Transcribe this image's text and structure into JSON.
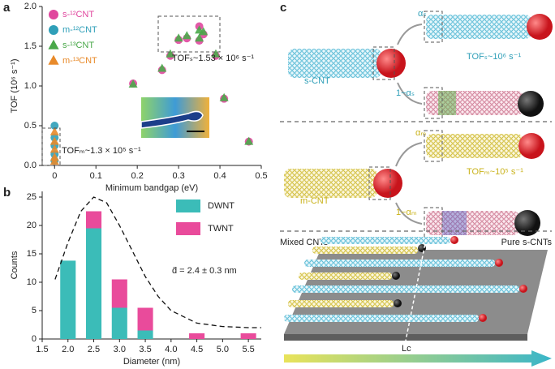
{
  "chart_data": [
    {
      "type": "scatter",
      "panel": "a",
      "x_label": "Minimum bandgap (eV)",
      "y_label": "TOF (10⁶ s⁻¹)",
      "xlim": [
        -0.03,
        0.5
      ],
      "xticks": [
        0,
        0.1,
        0.2,
        0.3,
        0.4,
        0.5
      ],
      "ylim": [
        0,
        2.0
      ],
      "yticks": [
        {
          "value": 0,
          "label": "0.0"
        },
        {
          "value": 0.5,
          "label": "0.5"
        },
        {
          "value": 1.0,
          "label": "1.0"
        },
        {
          "value": 1.5,
          "label": "1.5"
        },
        {
          "value": 2.0,
          "label": "2.0"
        }
      ],
      "annotations": [
        "TOFₛ~1.53 × 10⁶ s⁻¹",
        "TOFₘ~1.3 × 10⁵ s⁻¹"
      ],
      "series": [
        {
          "name": "s-¹²CNT",
          "color": "#e0479e",
          "marker": "circle",
          "x": [
            0.19,
            0.26,
            0.28,
            0.3,
            0.32,
            0.35,
            0.35,
            0.36,
            0.39,
            0.41,
            0.47
          ],
          "values": [
            1.03,
            1.2,
            1.38,
            1.58,
            1.6,
            1.75,
            1.57,
            1.65,
            1.38,
            0.84,
            0.3
          ]
        },
        {
          "name": "m-¹²CNT",
          "color": "#2f9fb8",
          "marker": "circle",
          "x": [
            0,
            0,
            0,
            0,
            0
          ],
          "values": [
            0.5,
            0.35,
            0.25,
            0.14,
            0.06
          ]
        },
        {
          "name": "s-¹³CNT",
          "color": "#4aa84a",
          "marker": "triangle",
          "x": [
            0.19,
            0.26,
            0.28,
            0.3,
            0.32,
            0.35,
            0.35,
            0.36,
            0.39,
            0.41,
            0.47
          ],
          "values": [
            1.02,
            1.22,
            1.4,
            1.6,
            1.63,
            1.7,
            1.6,
            1.68,
            1.4,
            0.85,
            0.3
          ]
        },
        {
          "name": "m-¹³CNT",
          "color": "#e88a2a",
          "marker": "triangle",
          "x": [
            0,
            0,
            0,
            0,
            0
          ],
          "values": [
            0.42,
            0.3,
            0.2,
            0.1,
            0.05
          ]
        }
      ]
    },
    {
      "type": "bar",
      "panel": "b",
      "x_label": "Diameter (nm)",
      "y_label": "Counts",
      "xlim": [
        1.5,
        5.75
      ],
      "xticks": [
        1.5,
        {
          "value": 2.0,
          "label": "2.0"
        },
        2.5,
        {
          "value": 3.0,
          "label": "3.0"
        },
        3.5,
        {
          "value": 4.0,
          "label": "4.0"
        },
        4.5,
        {
          "value": 5.0,
          "label": "5.0"
        },
        5.5
      ],
      "ylim": [
        0,
        26
      ],
      "yticks": [
        0,
        5,
        10,
        15,
        20,
        25
      ],
      "annotation": "d̄ = 2.4 ± 0.3 nm",
      "x": [
        2.0,
        2.5,
        3.0,
        3.5,
        4.5,
        5.5
      ],
      "series": [
        {
          "name": "DWNT",
          "color": "#3bbcb8",
          "values": [
            13.8,
            19.5,
            5.5,
            1.5,
            0,
            0
          ]
        },
        {
          "name": "TWNT",
          "color": "#e94b9b",
          "values": [
            0,
            3,
            5,
            4,
            1,
            1
          ]
        }
      ],
      "fit": {
        "color": "#111",
        "x": [
          1.75,
          2.0,
          2.25,
          2.5,
          2.75,
          3.0,
          3.25,
          3.5,
          3.75,
          4.0,
          4.5,
          5.0,
          5.5,
          5.75
        ],
        "values": [
          10.5,
          17,
          22.5,
          25,
          24,
          20,
          15.5,
          11,
          7.5,
          5,
          2.8,
          2.2,
          2,
          2
        ]
      }
    }
  ],
  "diagram": {
    "panel": "c",
    "alpha_s": "αₛ",
    "s_cnt": "s-CNT",
    "one_minus_alpha_s": "1−αₛ",
    "tof_s": "TOFₛ~10⁶ s⁻¹",
    "alpha_m": "αₘ",
    "m_cnt": "m-CNT",
    "one_minus_alpha_m": "1−αₘ",
    "tof_m": "TOFₘ~10⁵ s⁻¹",
    "mixed": "Mixed CNTs",
    "pure": "Pure s-CNTs",
    "lc": "Lc"
  }
}
